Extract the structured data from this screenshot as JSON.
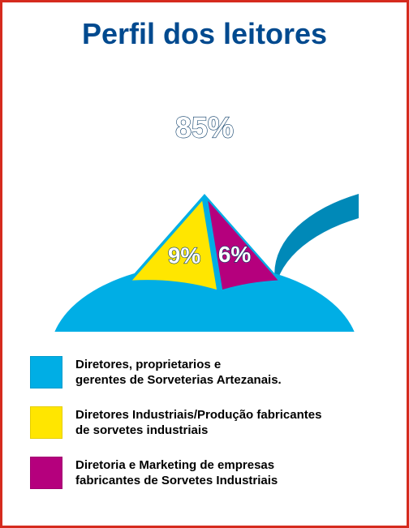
{
  "title": "Perfil dos leitores",
  "chart": {
    "type": "pie",
    "background_color": "#ffffff",
    "border_color": "#d52b1e",
    "slices": [
      {
        "label": "85%",
        "value": 85,
        "color_top": "#00aee5",
        "color_side": "#0089b8",
        "explode": 0
      },
      {
        "label": "9%",
        "value": 9,
        "color_top": "#ffe600",
        "color_side": "#d4bf00",
        "explode": 0.08
      },
      {
        "label": "6%",
        "value": 6,
        "color_top": "#b5007d",
        "color_side": "#8a005f",
        "explode": 0.08
      }
    ],
    "label_fontsize_main": 36,
    "label_fontsize_sm": 28,
    "label_fill": "#ffffff",
    "label_stroke": "#083a66"
  },
  "legend": {
    "items": [
      {
        "color": "#00aee5",
        "text": "Diretores, proprietarios e\ngerentes de Sorveterias Artezanais."
      },
      {
        "color": "#ffe600",
        "text": "Diretores Industriais/Produção fabricantes\nde sorvetes industriais"
      },
      {
        "color": "#b5007d",
        "text": "Diretoria e Marketing de empresas\nfabricantes de Sorvetes Industriais"
      }
    ],
    "font_size": 15,
    "font_weight": "bold",
    "text_color": "#000000"
  }
}
